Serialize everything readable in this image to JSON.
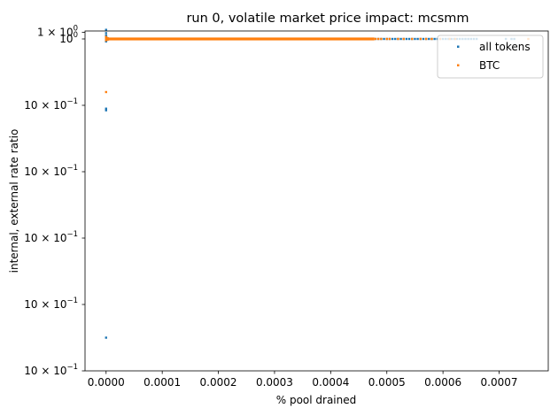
{
  "chart_data": {
    "type": "scatter",
    "title": "run 0, volatile market price impact: mcsmm",
    "xlabel": "% pool drained",
    "ylabel": "internal, external rate ratio",
    "xlim": [
      -3.75e-05,
      0.0007875
    ],
    "x_ticks": [
      {
        "value": 0.0,
        "label": "0.0000"
      },
      {
        "value": 0.0001,
        "label": "0.0001"
      },
      {
        "value": 0.0002,
        "label": "0.0002"
      },
      {
        "value": 0.0003,
        "label": "0.0003"
      },
      {
        "value": 0.0004,
        "label": "0.0004"
      },
      {
        "value": 0.0005,
        "label": "0.0005"
      },
      {
        "value": 0.0006,
        "label": "0.0006"
      },
      {
        "value": 0.0007,
        "label": "0.0007"
      }
    ],
    "y_scale": "log",
    "ylim": [
      0.99998,
      1.00000048
    ],
    "y_ticks": [
      {
        "value": 1.0000004,
        "base": "1 × 10",
        "exp": "0"
      },
      {
        "value": 1.0,
        "base": "10",
        "exp": "0"
      },
      {
        "value": 0.999996,
        "base": "10 × 10",
        "exp": "−1"
      },
      {
        "value": 0.999992,
        "base": "10 × 10",
        "exp": "−1"
      },
      {
        "value": 0.999988,
        "base": "10 × 10",
        "exp": "−1"
      },
      {
        "value": 0.999984,
        "base": "10 × 10",
        "exp": "−1"
      },
      {
        "value": 0.99998,
        "base": "10 × 10",
        "exp": "−1"
      }
    ],
    "legend": {
      "placement": "top-right"
    },
    "series": [
      {
        "name": "all tokens",
        "color": "#1f77b4",
        "points": [
          [
            0.0,
            1.00000055
          ],
          [
            0.0,
            1.00000035
          ],
          [
            0.0,
            1.0000002
          ],
          [
            0.0,
            1.00000015
          ],
          [
            0.0,
            1.0000001
          ],
          [
            0.0,
            1.00000008
          ],
          [
            0.0,
            1.00000005
          ],
          [
            0.0,
            1.00000003
          ],
          [
            0.0,
            0.99999998
          ],
          [
            0.0,
            0.99999995
          ],
          [
            0.0,
            0.9999999
          ],
          [
            0.0,
            0.99999985
          ],
          [
            0.0,
            0.9999958
          ],
          [
            0.0,
            0.9999957
          ],
          [
            0.0,
            0.999982
          ],
          [
            5e-07,
            1.00000012
          ],
          [
            5e-07,
            0.99999992
          ],
          [
            0.000475,
            1.0
          ],
          [
            0.00048,
            1.0
          ],
          [
            0.000485,
            1.0
          ],
          [
            0.00049,
            1.0
          ],
          [
            0.000495,
            1.0
          ],
          [
            0.0005,
            1.0
          ],
          [
            0.000505,
            1.0
          ],
          [
            0.00051,
            1.0
          ],
          [
            0.000515,
            1.0
          ],
          [
            0.00052,
            1.0
          ],
          [
            0.000525,
            1.0
          ],
          [
            0.00053,
            1.0
          ],
          [
            0.000535,
            1.0
          ],
          [
            0.00054,
            1.0
          ],
          [
            0.000545,
            1.0
          ],
          [
            0.00055,
            1.0
          ],
          [
            0.000555,
            1.0
          ],
          [
            0.00056,
            1.0
          ],
          [
            0.000565,
            1.0
          ],
          [
            0.00057,
            1.0
          ],
          [
            0.000575,
            1.0
          ],
          [
            0.00058,
            1.0
          ],
          [
            0.000585,
            1.0
          ],
          [
            0.00059,
            1.0
          ],
          [
            0.000595,
            1.0
          ],
          [
            0.0006,
            1.0
          ],
          [
            0.000605,
            1.0
          ],
          [
            0.00061,
            1.0
          ],
          [
            0.000615,
            1.0
          ],
          [
            0.00062,
            1.0
          ],
          [
            0.000625,
            1.0
          ],
          [
            0.00063,
            1.0
          ],
          [
            0.000635,
            1.0
          ],
          [
            0.00064,
            1.0
          ],
          [
            0.000645,
            1.0
          ],
          [
            0.00065,
            1.0
          ],
          [
            0.000655,
            1.0
          ],
          [
            0.00066,
            1.0
          ],
          [
            0.000712,
            1.0
          ],
          [
            0.000722,
            1.0
          ],
          [
            0.000727,
            1.0
          ]
        ]
      },
      {
        "name": "BTC",
        "color": "#ff7f0e",
        "points": [
          [
            0.0,
            1.00000012
          ],
          [
            0.0,
            1.00000006
          ],
          [
            0.0,
            1.00000003
          ],
          [
            0.0,
            0.99999997
          ],
          [
            0.0,
            0.99999992
          ],
          [
            0.0,
            0.9999968
          ],
          [
            3e-06,
            1.00000004
          ],
          [
            3e-06,
            0.99999996
          ],
          [
            5e-06,
            1.0
          ],
          [
            1e-05,
            1.0
          ],
          [
            2e-05,
            1.0
          ],
          [
            3e-05,
            1.0
          ],
          [
            4e-05,
            1.0
          ],
          [
            5e-05,
            1.0
          ],
          [
            6e-05,
            1.0
          ],
          [
            7e-05,
            1.0
          ],
          [
            8e-05,
            1.0
          ],
          [
            9e-05,
            1.0
          ],
          [
            0.0001,
            1.0
          ],
          [
            0.00011,
            1.0
          ],
          [
            0.00012,
            1.0
          ],
          [
            0.00013,
            1.0
          ],
          [
            0.00014,
            1.0
          ],
          [
            0.00015,
            1.0
          ],
          [
            0.00016,
            1.0
          ],
          [
            0.00017,
            1.0
          ],
          [
            0.00018,
            1.0
          ],
          [
            0.00019,
            1.0
          ],
          [
            0.0002,
            1.0
          ],
          [
            0.00021,
            1.0
          ],
          [
            0.00022,
            1.0
          ],
          [
            0.00023,
            1.0
          ],
          [
            0.00024,
            1.0
          ],
          [
            0.00025,
            1.0
          ],
          [
            0.00026,
            1.0
          ],
          [
            0.00027,
            1.0
          ],
          [
            0.00028,
            1.0
          ],
          [
            0.00029,
            1.0
          ],
          [
            0.0003,
            1.0
          ],
          [
            0.00031,
            1.0
          ],
          [
            0.00032,
            1.0
          ],
          [
            0.00033,
            1.0
          ],
          [
            0.00034,
            1.0
          ],
          [
            0.00035,
            1.0
          ],
          [
            0.00036,
            1.0
          ],
          [
            0.00037,
            1.0
          ],
          [
            0.00038,
            1.0
          ],
          [
            0.00039,
            1.0
          ],
          [
            0.0004,
            1.0
          ],
          [
            0.00041,
            1.0
          ],
          [
            0.00042,
            1.0
          ],
          [
            0.00043,
            1.0
          ],
          [
            0.00044,
            1.0
          ],
          [
            0.00045,
            1.0
          ],
          [
            0.00046,
            1.0
          ],
          [
            0.00047,
            1.0
          ],
          [
            0.00048,
            1.0
          ],
          [
            0.000485,
            1.0
          ],
          [
            0.00049,
            1.0
          ],
          [
            0.0005,
            1.0
          ],
          [
            0.000505,
            1.0
          ],
          [
            0.00052,
            1.0
          ],
          [
            0.00053,
            1.0
          ],
          [
            0.000545,
            1.0
          ],
          [
            0.00056,
            1.0
          ],
          [
            0.00057,
            1.0
          ],
          [
            0.00058,
            1.0
          ],
          [
            0.000595,
            1.0
          ],
          [
            0.000612,
            1.0
          ],
          [
            0.000622,
            1.0
          ],
          [
            0.000752,
            1.0
          ]
        ]
      }
    ]
  }
}
